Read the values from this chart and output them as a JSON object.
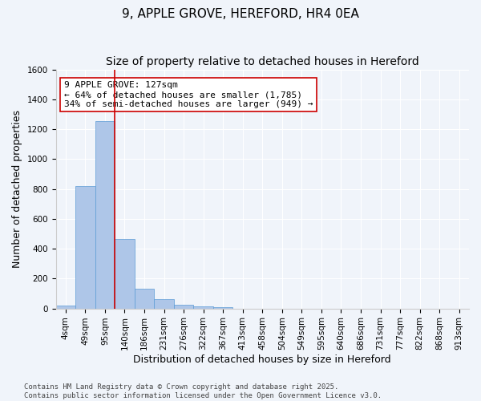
{
  "title": "9, APPLE GROVE, HEREFORD, HR4 0EA",
  "subtitle": "Size of property relative to detached houses in Hereford",
  "xlabel": "Distribution of detached houses by size in Hereford",
  "ylabel": "Number of detached properties",
  "bin_labels": [
    "4sqm",
    "49sqm",
    "95sqm",
    "140sqm",
    "186sqm",
    "231sqm",
    "276sqm",
    "322sqm",
    "367sqm",
    "413sqm",
    "458sqm",
    "504sqm",
    "549sqm",
    "595sqm",
    "640sqm",
    "686sqm",
    "731sqm",
    "777sqm",
    "822sqm",
    "868sqm",
    "913sqm"
  ],
  "bar_values": [
    20,
    820,
    1255,
    465,
    130,
    60,
    25,
    15,
    10,
    0,
    0,
    0,
    0,
    0,
    0,
    0,
    0,
    0,
    0,
    0,
    0
  ],
  "bar_color": "#aec6e8",
  "bar_edge_color": "#5b9bd5",
  "vline_x": 3.0,
  "vline_color": "#cc0000",
  "ylim": [
    0,
    1600
  ],
  "yticks": [
    0,
    200,
    400,
    600,
    800,
    1000,
    1200,
    1400,
    1600
  ],
  "annotation_text": "9 APPLE GROVE: 127sqm\n← 64% of detached houses are smaller (1,785)\n34% of semi-detached houses are larger (949) →",
  "annotation_box_color": "#ffffff",
  "annotation_box_edge": "#cc0000",
  "footer_text": "Contains HM Land Registry data © Crown copyright and database right 2025.\nContains public sector information licensed under the Open Government Licence v3.0.",
  "background_color": "#f0f4fa",
  "grid_color": "#ffffff",
  "title_fontsize": 11,
  "subtitle_fontsize": 10,
  "axis_label_fontsize": 9,
  "tick_fontsize": 7.5,
  "annotation_fontsize": 8,
  "footer_fontsize": 6.5
}
